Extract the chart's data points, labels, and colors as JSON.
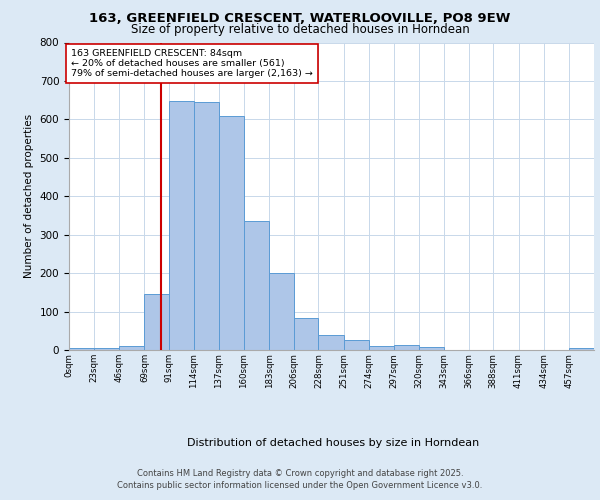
{
  "title_line1": "163, GREENFIELD CRESCENT, WATERLOOVILLE, PO8 9EW",
  "title_line2": "Size of property relative to detached houses in Horndean",
  "xlabel": "Distribution of detached houses by size in Horndean",
  "ylabel": "Number of detached properties",
  "bin_labels": [
    "0sqm",
    "23sqm",
    "46sqm",
    "69sqm",
    "91sqm",
    "114sqm",
    "137sqm",
    "160sqm",
    "183sqm",
    "206sqm",
    "228sqm",
    "251sqm",
    "274sqm",
    "297sqm",
    "320sqm",
    "343sqm",
    "366sqm",
    "388sqm",
    "411sqm",
    "434sqm",
    "457sqm"
  ],
  "bin_edges": [
    0,
    23,
    46,
    69,
    91,
    114,
    137,
    160,
    183,
    206,
    228,
    251,
    274,
    297,
    320,
    343,
    366,
    388,
    411,
    434,
    457
  ],
  "bar_heights": [
    5,
    5,
    10,
    145,
    648,
    645,
    610,
    335,
    200,
    83,
    40,
    25,
    10,
    12,
    8,
    0,
    0,
    0,
    0,
    0,
    5
  ],
  "bar_color": "#aec6e8",
  "bar_edge_color": "#5b9bd5",
  "red_line_x": 84,
  "annotation_text": "163 GREENFIELD CRESCENT: 84sqm\n← 20% of detached houses are smaller (561)\n79% of semi-detached houses are larger (2,163) →",
  "annotation_box_color": "#ffffff",
  "annotation_box_edge": "#cc0000",
  "grid_color": "#c8d8ea",
  "background_color": "#dce9f5",
  "plot_background": "#ffffff",
  "footer_line1": "Contains HM Land Registry data © Crown copyright and database right 2025.",
  "footer_line2": "Contains public sector information licensed under the Open Government Licence v3.0.",
  "ylim": [
    0,
    800
  ],
  "yticks": [
    0,
    100,
    200,
    300,
    400,
    500,
    600,
    700,
    800
  ]
}
